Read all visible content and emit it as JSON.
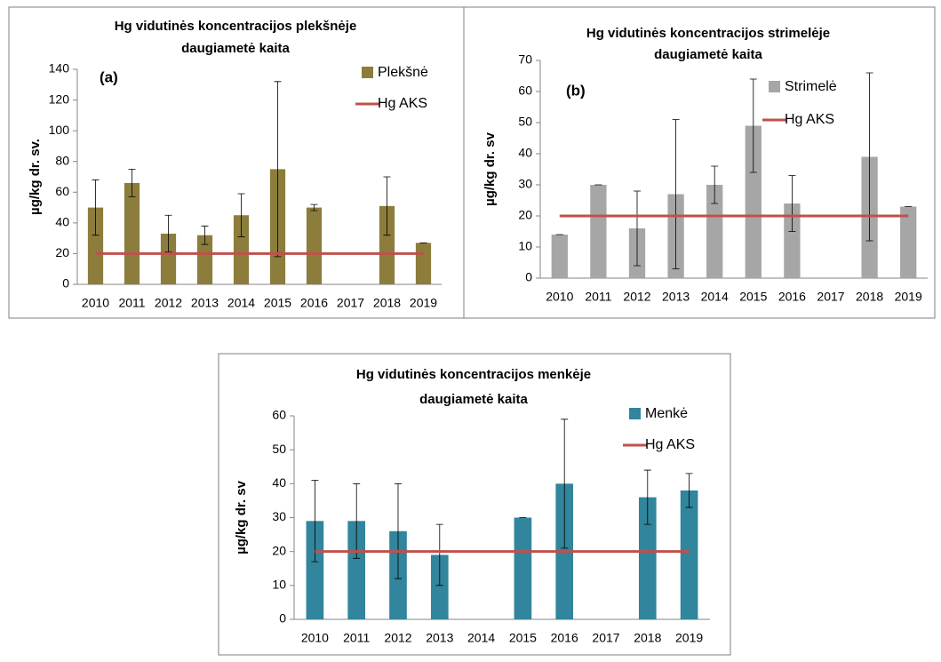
{
  "chart_data": [
    {
      "type": "bar",
      "title": [
        "Hg vidutinės koncentracijos plekšnėje",
        "daugiametė kaita"
      ],
      "label": "(a)",
      "ylabel": "µg/kg dr. sv.",
      "categories": [
        "2010",
        "2011",
        "2012",
        "2013",
        "2014",
        "2015",
        "2016",
        "2017",
        "2018",
        "2019"
      ],
      "series": [
        {
          "name": "Plekšnė",
          "color": "#8c7d3c",
          "values": [
            50,
            66,
            33,
            32,
            45,
            75,
            50,
            null,
            51,
            27
          ],
          "errors": [
            18,
            9,
            12,
            6,
            14,
            57,
            2,
            null,
            19,
            0
          ]
        },
        {
          "name": "Hg AKS",
          "type": "line",
          "color": "#c0504d",
          "values": [
            20,
            20,
            20,
            20,
            20,
            20,
            20,
            20,
            20,
            20
          ]
        }
      ],
      "ylim": [
        0,
        140
      ],
      "yticks": [
        0,
        20,
        40,
        60,
        80,
        100,
        120,
        140
      ]
    },
    {
      "type": "bar",
      "title": [
        "Hg vidutinės koncentracijos strimelėje",
        "daugiametė kaita"
      ],
      "label": "(b)",
      "ylabel": "µg/kg dr. sv",
      "categories": [
        "2010",
        "2011",
        "2012",
        "2013",
        "2014",
        "2015",
        "2016",
        "2017",
        "2018",
        "2019"
      ],
      "series": [
        {
          "name": "Strimelė",
          "color": "#a6a6a6",
          "values": [
            14,
            30,
            16,
            27,
            30,
            49,
            24,
            null,
            39,
            23
          ],
          "errors": [
            0,
            0,
            12,
            24,
            6,
            15,
            9,
            null,
            27,
            0
          ]
        },
        {
          "name": "Hg AKS",
          "type": "line",
          "color": "#c0504d",
          "values": [
            20,
            20,
            20,
            20,
            20,
            20,
            20,
            20,
            20,
            20
          ]
        }
      ],
      "ylim": [
        0,
        70
      ],
      "yticks": [
        0,
        10,
        20,
        30,
        40,
        50,
        60,
        70
      ]
    },
    {
      "type": "bar",
      "title": [
        "Hg vidutinės koncentracijos menkėje",
        "daugiametė kaita"
      ],
      "ylabel": "µg/kg dr. sv",
      "categories": [
        "2010",
        "2011",
        "2012",
        "2013",
        "2014",
        "2015",
        "2016",
        "2017",
        "2018",
        "2019"
      ],
      "series": [
        {
          "name": "Menkė",
          "color": "#31859c",
          "values": [
            29,
            29,
            26,
            19,
            null,
            30,
            40,
            null,
            36,
            38
          ],
          "errors": [
            12,
            11,
            14,
            9,
            null,
            0,
            19,
            null,
            8,
            5
          ]
        },
        {
          "name": "Hg AKS",
          "type": "line",
          "color": "#c0504d",
          "values": [
            20,
            20,
            20,
            20,
            20,
            20,
            20,
            20,
            20,
            20
          ]
        }
      ],
      "ylim": [
        0,
        60
      ],
      "yticks": [
        0,
        10,
        20,
        30,
        40,
        50,
        60
      ]
    }
  ]
}
